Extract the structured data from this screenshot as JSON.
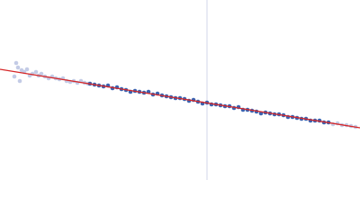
{
  "chart_data": {
    "type": "scatter",
    "xlim": [
      0,
      400
    ],
    "ylim": [
      0,
      200
    ],
    "vline_x": 230,
    "vline_color": "#d0d6ea",
    "fit": {
      "x": [
        0,
        400
      ],
      "values": [
        123,
        58
      ],
      "color": "#d62728"
    },
    "series": [
      {
        "color": "#c3cbe6",
        "x": [
          16,
          18,
          20,
          22,
          24,
          27,
          30,
          33,
          36,
          40,
          43,
          46,
          50,
          54,
          58,
          62,
          66,
          70,
          74,
          78,
          82,
          86,
          90,
          94,
          98
        ],
        "values": [
          115,
          130,
          125,
          110,
          122,
          120,
          123,
          116,
          118,
          120,
          116,
          118,
          115,
          113,
          115,
          113,
          112,
          113,
          110,
          109,
          110,
          108,
          110,
          108,
          107
        ]
      },
      {
        "color": "#3a62b0",
        "x": [
          100,
          105,
          110,
          115,
          120,
          125,
          130,
          135,
          140,
          145,
          150,
          155,
          160,
          165,
          170,
          175,
          180,
          185,
          190,
          195,
          200,
          205,
          210,
          215,
          220,
          225,
          230,
          235,
          240,
          245,
          250,
          255,
          260,
          265,
          270,
          275,
          280,
          285,
          290,
          295,
          300,
          305,
          310,
          315,
          320,
          325,
          330,
          335,
          340,
          345,
          350,
          355,
          360,
          365
        ],
        "values": [
          107,
          106,
          105,
          104,
          105,
          102,
          103,
          101,
          100,
          98,
          99,
          98,
          97,
          98,
          95,
          96,
          94,
          93,
          92,
          91,
          91,
          90,
          88,
          89,
          87,
          85,
          86,
          84,
          84,
          83,
          82,
          82,
          80,
          81,
          78,
          78,
          77,
          76,
          74,
          75,
          74,
          73,
          73,
          72,
          70,
          70,
          69,
          68,
          68,
          66,
          66,
          66,
          64,
          64
        ]
      },
      {
        "color": "#c3cbe6",
        "x": [
          370,
          375,
          380,
          385,
          390,
          395
        ],
        "values": [
          62,
          63,
          61,
          61,
          60,
          59
        ]
      }
    ]
  }
}
